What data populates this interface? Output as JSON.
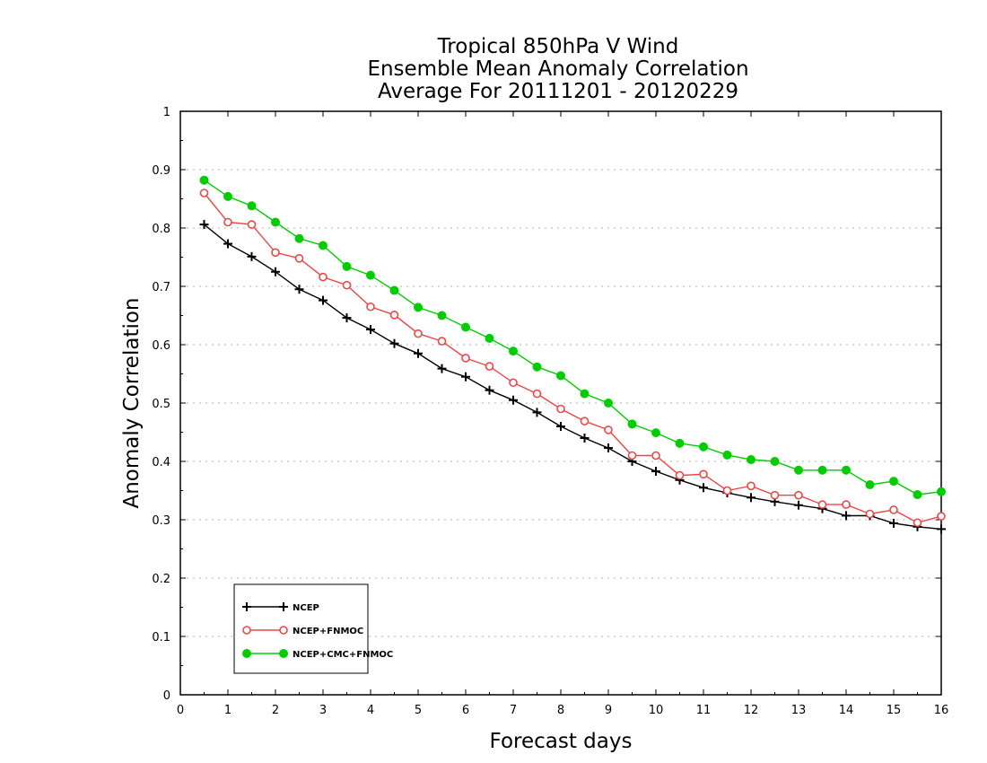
{
  "chart_data": {
    "type": "line",
    "title_lines": [
      "Tropical 850hPa V Wind",
      "Ensemble Mean Anomaly Correlation",
      "Average For 20111201 - 20120229"
    ],
    "xlabel": "Forecast days",
    "ylabel": "Anomaly Correlation",
    "xlim": [
      0,
      16
    ],
    "ylim": [
      0,
      1
    ],
    "x_ticks": [
      "0",
      "1",
      "2",
      "3",
      "4",
      "5",
      "6",
      "7",
      "8",
      "9",
      "10",
      "11",
      "12",
      "13",
      "14",
      "15",
      "16"
    ],
    "y_ticks": [
      "0",
      "0.1",
      "0.2",
      "0.3",
      "0.4",
      "0.5",
      "0.6",
      "0.7",
      "0.8",
      "0.9",
      "1"
    ],
    "grid": "horizontal dotted",
    "legend_position": "bottom-left",
    "x": [
      0.5,
      1,
      1.5,
      2,
      2.5,
      3,
      3.5,
      4,
      4.5,
      5,
      5.5,
      6,
      6.5,
      7,
      7.5,
      8,
      8.5,
      9,
      9.5,
      10,
      10.5,
      11,
      11.5,
      12,
      12.5,
      13,
      13.5,
      14,
      14.5,
      15,
      15.5,
      16
    ],
    "series": [
      {
        "name": "NCEP",
        "color": "#000000",
        "marker": "plus",
        "values": [
          0.806,
          0.773,
          0.751,
          0.725,
          0.695,
          0.676,
          0.646,
          0.626,
          0.602,
          0.585,
          0.559,
          0.545,
          0.522,
          0.505,
          0.484,
          0.46,
          0.44,
          0.423,
          0.4,
          0.383,
          0.368,
          0.355,
          0.346,
          0.338,
          0.331,
          0.325,
          0.319,
          0.307,
          0.307,
          0.294,
          0.288,
          0.284
        ]
      },
      {
        "name": "NCEP+FNMOC",
        "color": "#e8484a",
        "marker": "open-circle",
        "values": [
          0.86,
          0.81,
          0.806,
          0.758,
          0.748,
          0.716,
          0.702,
          0.665,
          0.651,
          0.619,
          0.606,
          0.577,
          0.563,
          0.535,
          0.516,
          0.49,
          0.469,
          0.454,
          0.41,
          0.41,
          0.376,
          0.378,
          0.35,
          0.358,
          0.342,
          0.342,
          0.326,
          0.326,
          0.31,
          0.317,
          0.295,
          0.306
        ]
      },
      {
        "name": "NCEP+CMC+FNMOC",
        "color": "#00cc00",
        "marker": "filled-circle",
        "values": [
          0.882,
          0.854,
          0.838,
          0.81,
          0.782,
          0.77,
          0.734,
          0.719,
          0.693,
          0.664,
          0.65,
          0.63,
          0.611,
          0.589,
          0.562,
          0.547,
          0.516,
          0.5,
          0.464,
          0.449,
          0.431,
          0.425,
          0.411,
          0.403,
          0.4,
          0.385,
          0.385,
          0.385,
          0.36,
          0.366,
          0.343,
          0.348
        ]
      }
    ]
  }
}
